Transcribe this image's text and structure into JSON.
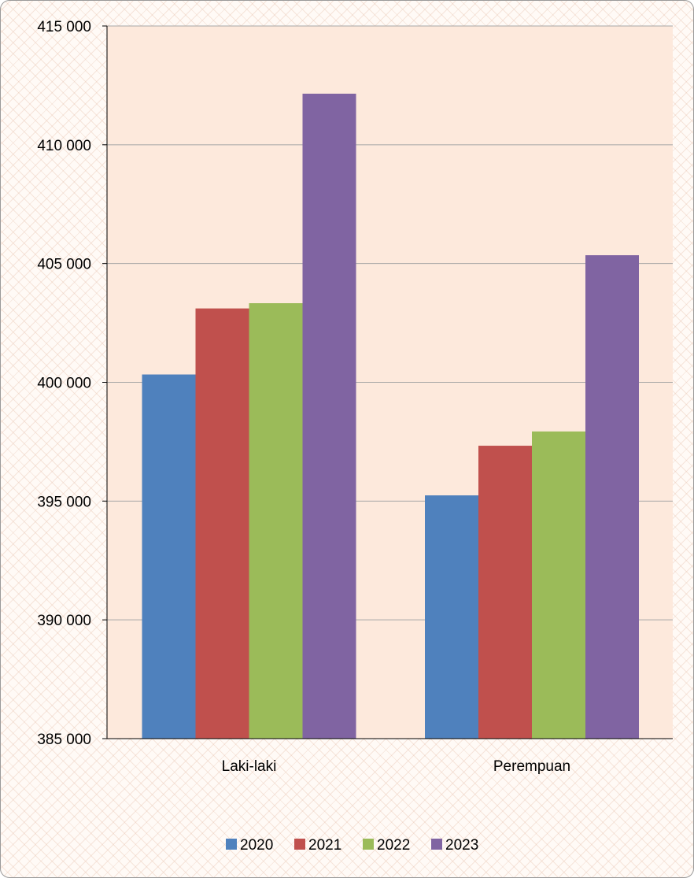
{
  "chart_data": {
    "type": "bar",
    "title": "",
    "xlabel": "",
    "ylabel": "",
    "categories": [
      "Laki-laki",
      "Perempuan"
    ],
    "series": [
      {
        "name": "2020",
        "color": "#4f81bd",
        "values": [
          400330,
          395240
        ]
      },
      {
        "name": "2021",
        "color": "#c0504d",
        "values": [
          403110,
          397330
        ]
      },
      {
        "name": "2022",
        "color": "#9bbb59",
        "values": [
          403330,
          397930
        ]
      },
      {
        "name": "2023",
        "color": "#8064a2",
        "values": [
          412150,
          405350
        ]
      }
    ],
    "ylim": [
      385000,
      415000
    ],
    "yticks": [
      385000,
      390000,
      395000,
      400000,
      405000,
      410000,
      415000
    ],
    "ytick_labels": [
      "385 000",
      "390 000",
      "395 000",
      "400 000",
      "405 000",
      "410 000",
      "415 000"
    ],
    "grid": true,
    "legend_position": "bottom",
    "plot_background": "#fde9dc"
  }
}
